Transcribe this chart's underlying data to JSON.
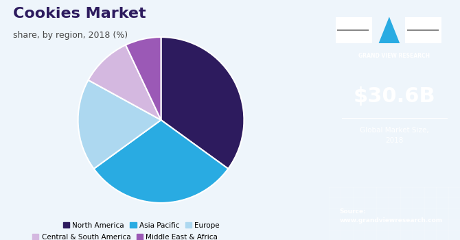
{
  "title": "Cookies Market",
  "subtitle": "share, by region, 2018 (%)",
  "slices": [
    {
      "label": "North America",
      "value": 35,
      "color": "#2d1b5e"
    },
    {
      "label": "Asia Pacific",
      "value": 30,
      "color": "#29abe2"
    },
    {
      "label": "Europe",
      "value": 18,
      "color": "#add8f0"
    },
    {
      "label": "Central & South America",
      "value": 10,
      "color": "#d4b8e0"
    },
    {
      "label": "Middle East & Africa",
      "value": 7,
      "color": "#9b59b6"
    }
  ],
  "startangle": 90,
  "background_color": "#eef5fb",
  "right_panel_color": "#2e1a6e",
  "right_panel_bottom_color": "#4a6fa5",
  "market_size": "$30.6B",
  "market_label": "Global Market Size,\n2018",
  "source_text": "Source:\nwww.grandviewresearch.com",
  "legend_labels": [
    "North America",
    "Asia Pacific",
    "Europe",
    "Central & South America",
    "Middle East & Africa"
  ],
  "legend_colors": [
    "#2d1b5e",
    "#29abe2",
    "#add8f0",
    "#d4b8e0",
    "#9b59b6"
  ],
  "title_color": "#2d1b5e",
  "subtitle_color": "#444444",
  "wedge_edge_color": "white",
  "top_bar_color": "#add8f0",
  "logo_text": "GRAND VIEW RESEARCH",
  "logo_line_color": "#888888",
  "logo_triangle_color": "#29abe2"
}
